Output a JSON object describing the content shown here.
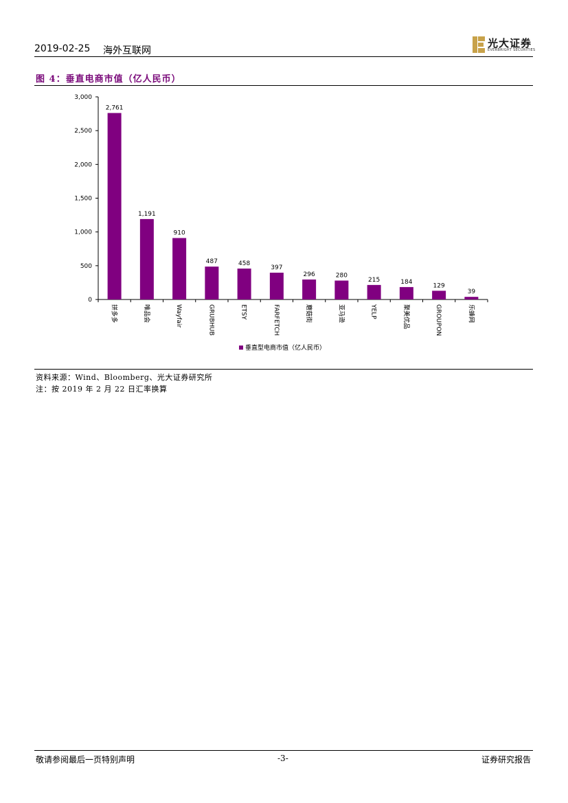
{
  "header": {
    "date": "2019-02-25",
    "section": "海外互联网"
  },
  "logo": {
    "name_cn": "光大证券",
    "name_en": "EVERBRIGHT SECURITIES",
    "brand_color": "#c8a24a"
  },
  "figure": {
    "title": "图 4：垂直电商市值（亿人民币）"
  },
  "chart_data": {
    "type": "bar",
    "categories": [
      "拼多多",
      "唯品会",
      "Wayfair",
      "GRUBHUB",
      "ETSY",
      "FARFETCH",
      "蘑菇街",
      "亚马逊",
      "YELP",
      "聚美优品",
      "GROUPON",
      "乐蜂网"
    ],
    "series": [
      {
        "name": "垂直型电商市值（亿人民币）",
        "values": [
          2761,
          1191,
          910,
          487,
          458,
          397,
          296,
          280,
          215,
          184,
          129,
          39
        ],
        "color": "#800080"
      }
    ],
    "value_labels": [
      "2,761",
      "1,191",
      "910",
      "487",
      "458",
      "397",
      "296",
      "280",
      "215",
      "184",
      "129",
      "39"
    ],
    "yticks": [
      "0",
      "500",
      "1,000",
      "1,500",
      "2,000",
      "2,500",
      "3,000"
    ],
    "ylim": [
      0,
      3000
    ],
    "grid": false,
    "legend_position": "bottom"
  },
  "source": "资料来源：Wind、Bloomberg、光大证券研究所",
  "note": "注：按 2019 年 2 月 22 日汇率换算",
  "footer": {
    "disclaimer": "敬请参阅最后一页特别声明",
    "page": "-3-",
    "doc_type": "证券研究报告"
  }
}
